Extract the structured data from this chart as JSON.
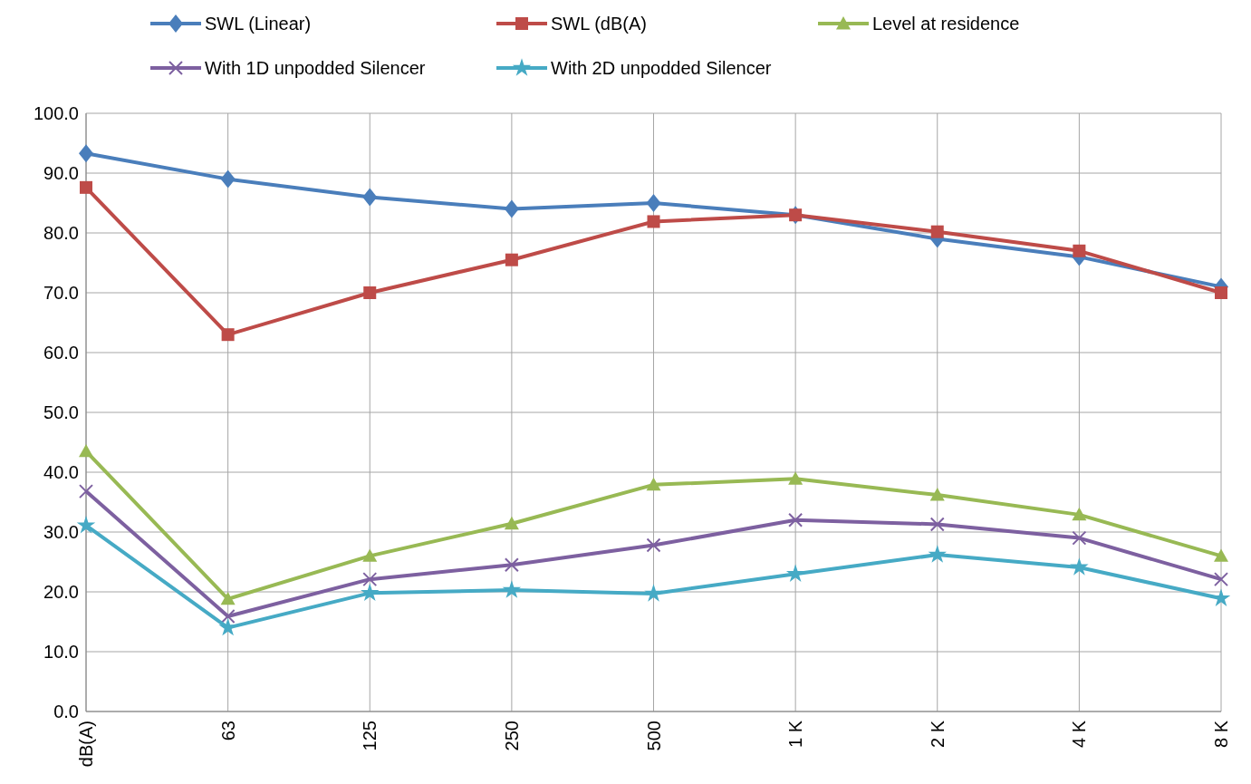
{
  "chart_data": {
    "type": "line",
    "categories": [
      "dB(A)",
      "63",
      "125",
      "250",
      "500",
      "1 K",
      "2 K",
      "4 K",
      "8 K"
    ],
    "ylim": [
      0,
      100
    ],
    "yticks": [
      {
        "value": 0,
        "label": "0.0"
      },
      {
        "value": 10,
        "label": "10.0"
      },
      {
        "value": 20,
        "label": "20.0"
      },
      {
        "value": 30,
        "label": "30.0"
      },
      {
        "value": 40,
        "label": "40.0"
      },
      {
        "value": 50,
        "label": "50.0"
      },
      {
        "value": 60,
        "label": "60.0"
      },
      {
        "value": 70,
        "label": "70.0"
      },
      {
        "value": 80,
        "label": "80.0"
      },
      {
        "value": 90,
        "label": "90.0"
      },
      {
        "value": 100,
        "label": "100.0"
      }
    ],
    "grid": true,
    "legend": "top",
    "line_style": "solid",
    "series": [
      {
        "name": "SWL (Linear)",
        "color": "#4a7ebb",
        "marker": "diamond",
        "values": [
          93.3,
          89,
          86,
          84,
          85,
          83,
          79,
          76,
          71
        ]
      },
      {
        "name": "SWL (dB(A)",
        "color": "#be4b48",
        "marker": "square",
        "values": [
          87.6,
          63,
          70,
          75.5,
          81.9,
          83,
          80.2,
          77,
          70
        ]
      },
      {
        "name": "Level at residence",
        "color": "#98b954",
        "marker": "triangle",
        "values": [
          43.5,
          18.8,
          26,
          31.4,
          37.9,
          38.9,
          36.2,
          32.9,
          26
        ]
      },
      {
        "name": "With 1D unpodded Silencer",
        "color": "#7d60a0",
        "marker": "cross",
        "values": [
          36.8,
          15.9,
          22.1,
          24.5,
          27.8,
          32,
          31.3,
          29,
          22.1
        ]
      },
      {
        "name": "With 2D unpodded Silencer",
        "color": "#46aac5",
        "marker": "star",
        "values": [
          31.1,
          14,
          19.8,
          20.3,
          19.7,
          23,
          26.2,
          24.1,
          18.9
        ]
      }
    ]
  }
}
